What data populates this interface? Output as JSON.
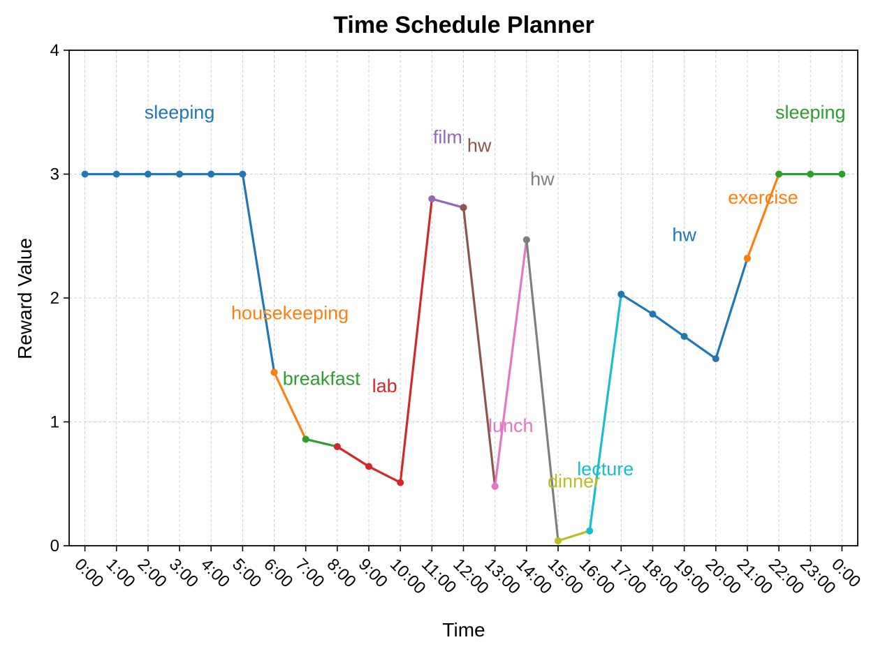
{
  "chart_data": {
    "type": "line",
    "title": "Time Schedule Planner",
    "xlabel": "Time",
    "ylabel": "Reward Value",
    "ylim": [
      0,
      4
    ],
    "yticks": [
      "0",
      "1",
      "2",
      "3",
      "4"
    ],
    "xlim": [
      -0.5,
      24.5
    ],
    "xticks": [
      "0:00",
      "1:00",
      "2:00",
      "3:00",
      "4:00",
      "5:00",
      "6:00",
      "7:00",
      "8:00",
      "9:00",
      "10:00",
      "11:00",
      "12:00",
      "13:00",
      "14:00",
      "15:00",
      "16:00",
      "17:00",
      "18:00",
      "19:00",
      "20:00",
      "21:00",
      "22:00",
      "23:00",
      "0:00"
    ],
    "grid": true,
    "segments": [
      {
        "label": "sleeping",
        "color": "#1f77b4",
        "x": [
          0,
          1,
          2,
          3,
          4,
          5,
          6
        ],
        "y": [
          3.0,
          3.0,
          3.0,
          3.0,
          3.0,
          3.0,
          1.4
        ],
        "label_x": 3.0,
        "label_y": 3.5,
        "label_anchor": "middle"
      },
      {
        "label": "housekeeping",
        "color": "#ff7f0e",
        "x": [
          6,
          7
        ],
        "y": [
          1.4,
          0.86
        ],
        "label_x": 6.5,
        "label_y": 1.88,
        "label_anchor": "middle"
      },
      {
        "label": "breakfast",
        "color": "#2ca02c",
        "x": [
          7,
          8
        ],
        "y": [
          0.86,
          0.8
        ],
        "label_x": 7.5,
        "label_y": 1.35,
        "label_anchor": "middle"
      },
      {
        "label": "lab",
        "color": "#d62728",
        "x": [
          8,
          9,
          10,
          11
        ],
        "y": [
          0.8,
          0.64,
          0.51,
          2.8
        ],
        "label_x": 9.5,
        "label_y": 1.29,
        "label_anchor": "middle"
      },
      {
        "label": "film",
        "color": "#9467bd",
        "x": [
          11,
          12
        ],
        "y": [
          2.8,
          2.73
        ],
        "label_x": 11.5,
        "label_y": 3.3,
        "label_anchor": "middle"
      },
      {
        "label": "hw",
        "color": "#8c564b",
        "x": [
          12,
          13
        ],
        "y": [
          2.73,
          0.48
        ],
        "label_x": 12.5,
        "label_y": 3.23,
        "label_anchor": "middle"
      },
      {
        "label": "lunch",
        "color": "#e377c2",
        "x": [
          13,
          14
        ],
        "y": [
          0.48,
          2.47
        ],
        "label_x": 13.5,
        "label_y": 0.97,
        "label_anchor": "middle"
      },
      {
        "label": "hw",
        "color": "#7f7f7f",
        "x": [
          14,
          15
        ],
        "y": [
          2.47,
          0.04
        ],
        "label_x": 14.5,
        "label_y": 2.96,
        "label_anchor": "middle"
      },
      {
        "label": "dinner",
        "color": "#bcbd22",
        "x": [
          15,
          16
        ],
        "y": [
          0.04,
          0.12
        ],
        "label_x": 15.5,
        "label_y": 0.52,
        "label_anchor": "middle"
      },
      {
        "label": "lecture",
        "color": "#17becf",
        "x": [
          16,
          17
        ],
        "y": [
          0.12,
          2.03
        ],
        "label_x": 16.5,
        "label_y": 0.62,
        "label_anchor": "middle"
      },
      {
        "label": "hw",
        "color": "#1f77b4",
        "x": [
          17,
          18,
          19,
          20,
          21
        ],
        "y": [
          2.03,
          1.87,
          1.69,
          1.51,
          2.32
        ],
        "label_x": 19.0,
        "label_y": 2.51,
        "label_anchor": "middle"
      },
      {
        "label": "exercise",
        "color": "#ff7f0e",
        "x": [
          21,
          22
        ],
        "y": [
          2.32,
          3.0
        ],
        "label_x": 21.5,
        "label_y": 2.81,
        "label_anchor": "middle"
      },
      {
        "label": "sleeping",
        "color": "#2ca02c",
        "x": [
          22,
          23,
          24
        ],
        "y": [
          3.0,
          3.0,
          3.0
        ],
        "label_x": 23.0,
        "label_y": 3.5,
        "label_anchor": "middle"
      }
    ]
  }
}
